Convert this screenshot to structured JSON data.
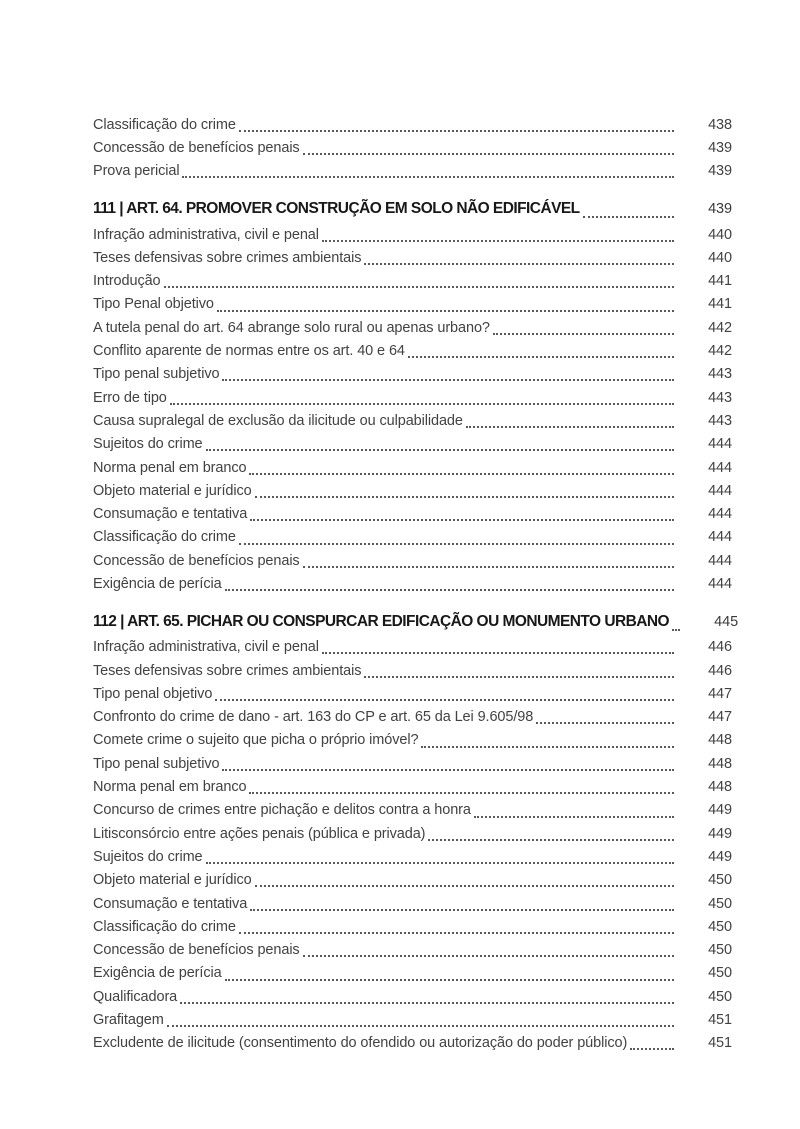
{
  "page": {
    "background": "#ffffff",
    "body_text_color": "#424242",
    "heading_text_color": "#181818",
    "dot_leader_color": "#595959"
  },
  "toc": {
    "sections": [
      {
        "heading": null,
        "entries": [
          {
            "label": "Classificação do crime",
            "page": "438"
          },
          {
            "label": "Concessão de benefícios penais",
            "page": "439"
          },
          {
            "label": "Prova pericial",
            "page": "439"
          }
        ]
      },
      {
        "heading": {
          "label": "111 | ART. 64. PROMOVER CONSTRUÇÃO EM SOLO NÃO EDIFICÁVEL",
          "page": "439"
        },
        "entries": [
          {
            "label": "Infração administrativa, civil e penal",
            "page": "440"
          },
          {
            "label": "Teses defensivas sobre crimes ambientais",
            "page": "440"
          },
          {
            "label": "Introdução",
            "page": "441"
          },
          {
            "label": "Tipo Penal objetivo",
            "page": "441"
          },
          {
            "label": "A tutela penal do art. 64 abrange solo rural ou apenas urbano?",
            "page": "442"
          },
          {
            "label": "Conflito aparente de normas entre os art. 40 e 64",
            "page": "442"
          },
          {
            "label": "Tipo penal subjetivo",
            "page": "443"
          },
          {
            "label": "Erro de tipo",
            "page": "443"
          },
          {
            "label": "Causa supralegal de exclusão da ilicitude ou culpabilidade",
            "page": "443"
          },
          {
            "label": "Sujeitos do crime",
            "page": "444"
          },
          {
            "label": "Norma penal em branco",
            "page": "444"
          },
          {
            "label": "Objeto material e jurídico",
            "page": "444"
          },
          {
            "label": "Consumação e tentativa",
            "page": "444"
          },
          {
            "label": "Classificação do crime",
            "page": "444"
          },
          {
            "label": "Concessão de benefícios penais",
            "page": "444"
          },
          {
            "label": "Exigência de perícia",
            "page": "444"
          }
        ]
      },
      {
        "heading": {
          "label": "112 | ART. 65. PICHAR OU CONSPURCAR EDIFICAÇÃO OU MONUMENTO URBANO",
          "page": "445"
        },
        "entries": [
          {
            "label": "Infração administrativa, civil e penal",
            "page": "446"
          },
          {
            "label": "Teses defensivas sobre crimes ambientais",
            "page": "446"
          },
          {
            "label": "Tipo penal objetivo",
            "page": "447"
          },
          {
            "label": "Confronto do crime de dano - art. 163 do CP e art. 65 da Lei 9.605/98",
            "page": "447"
          },
          {
            "label": "Comete crime o sujeito que picha o próprio imóvel?",
            "page": "448"
          },
          {
            "label": "Tipo penal subjetivo",
            "page": "448"
          },
          {
            "label": "Norma penal em branco",
            "page": "448"
          },
          {
            "label": "Concurso de crimes entre pichação e delitos contra a honra",
            "page": "449"
          },
          {
            "label": "Litisconsórcio entre ações penais (pública e privada)",
            "page": "449"
          },
          {
            "label": "Sujeitos do crime",
            "page": "449"
          },
          {
            "label": "Objeto material e jurídico",
            "page": "450"
          },
          {
            "label": "Consumação e tentativa",
            "page": "450"
          },
          {
            "label": "Classificação do crime",
            "page": "450"
          },
          {
            "label": "Concessão de benefícios penais",
            "page": "450"
          },
          {
            "label": "Exigência de perícia",
            "page": "450"
          },
          {
            "label": "Qualificadora",
            "page": "450"
          },
          {
            "label": "Grafitagem",
            "page": "451"
          },
          {
            "label": "Excludente de ilicitude (consentimento do ofendido ou autorização do poder público)",
            "page": "451"
          }
        ]
      }
    ]
  }
}
